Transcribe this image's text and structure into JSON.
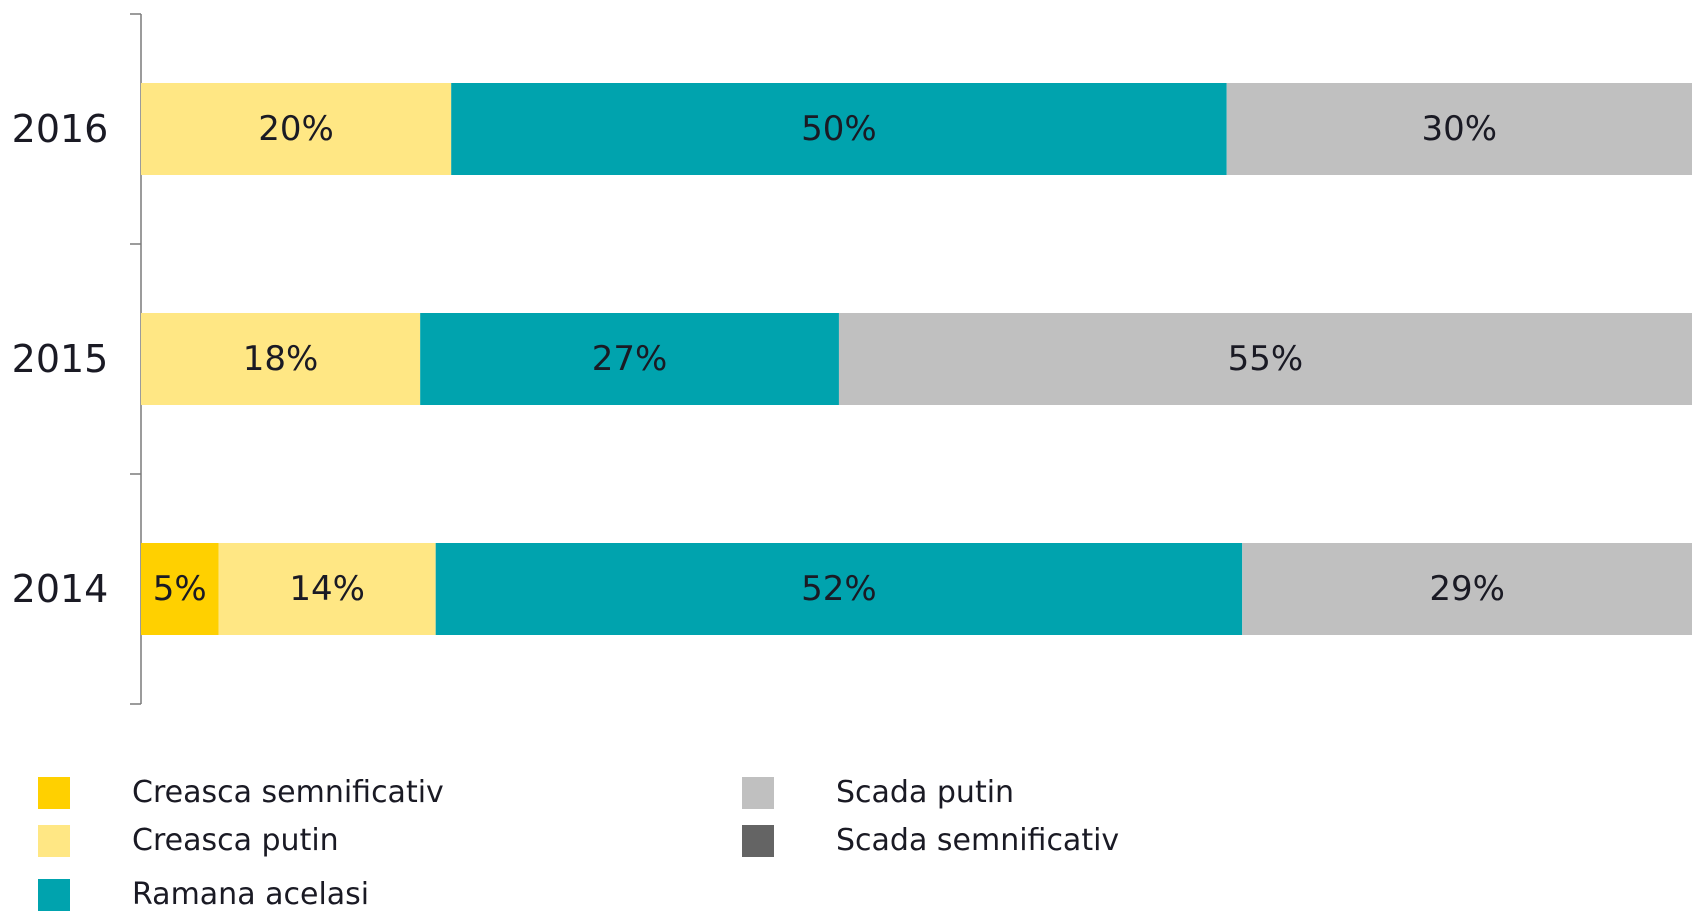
{
  "chart_data": {
    "type": "bar",
    "orientation": "horizontal",
    "stacked": true,
    "categories": [
      "2016",
      "2015",
      "2014"
    ],
    "series": [
      {
        "name": "Creasca semnificativ",
        "color": "#FFD000",
        "values": [
          0,
          0,
          5
        ]
      },
      {
        "name": "Creasca putin",
        "color": "#FFE784",
        "values": [
          20,
          18,
          14
        ]
      },
      {
        "name": "Ramana acelasi",
        "color": "#00A3AE",
        "values": [
          50,
          27,
          52
        ]
      },
      {
        "name": "Scada putin",
        "color": "#C0C0C0",
        "values": [
          30,
          55,
          29
        ]
      },
      {
        "name": "Scada semnificativ",
        "color": "#646464",
        "values": [
          0,
          0,
          0
        ]
      }
    ],
    "data_labels": [
      [
        "",
        "20%",
        "50%",
        "30%",
        ""
      ],
      [
        "",
        "18%",
        "27%",
        "55%",
        ""
      ],
      [
        "5%",
        "14%",
        "52%",
        "29%",
        ""
      ]
    ],
    "xlim": [
      0,
      100
    ],
    "grid": false,
    "legend_position": "bottom"
  }
}
